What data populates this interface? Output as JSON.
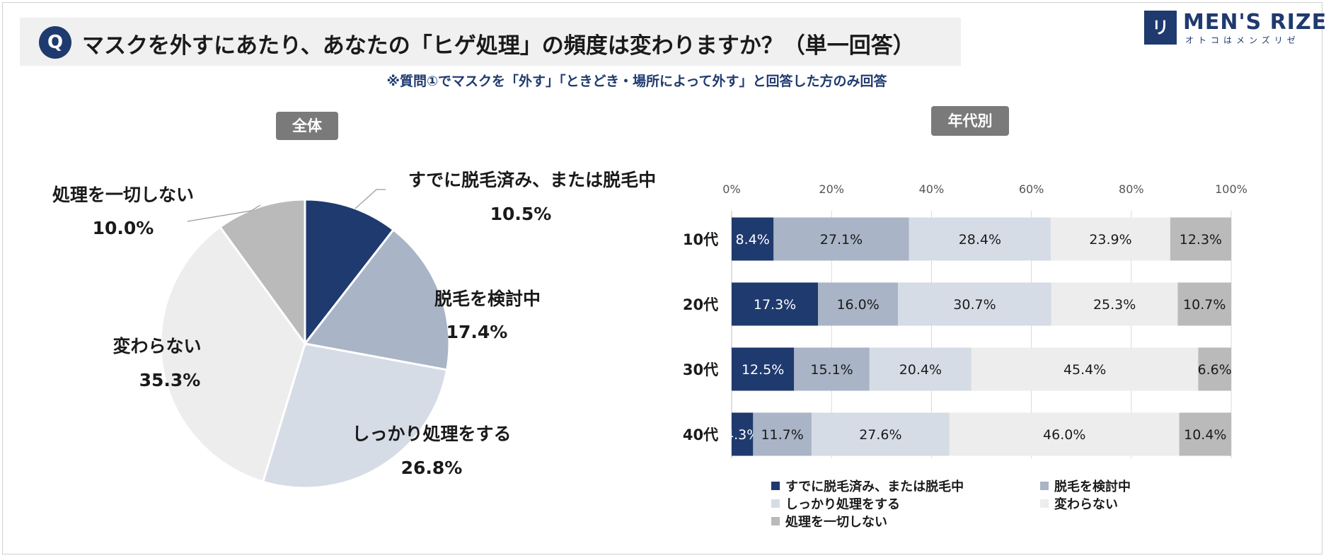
{
  "question": {
    "mark": "Q",
    "text": "マスクを外すにあたり、あなたの「ヒゲ処理」の頻度は変わりますか？（単一回答）",
    "note": "※質問①でマスクを「外す」「ときどき・場所によって外す」と回答した方のみ回答"
  },
  "logo": {
    "mark": "リゼ",
    "name": "MEN'S RIZE",
    "sub": "オトコはメンズリゼ"
  },
  "panels": {
    "overall": "全体",
    "by_age": "年代別"
  },
  "colors": {
    "already": "#1f3a6e",
    "considering": "#a9b4c6",
    "thorough": "#d6dce6",
    "unchanged": "#ededed",
    "none": "#bababa"
  },
  "chart_data": [
    {
      "type": "pie",
      "title": "全体",
      "start_angle_deg": 0,
      "direction": "clockwise",
      "slices": [
        {
          "label": "すでに脱毛済み、または脱毛中",
          "value": 10.5,
          "value_label": "10.5%",
          "color": "#1f3a6e"
        },
        {
          "label": "脱毛を検討中",
          "value": 17.4,
          "value_label": "17.4%",
          "color": "#a9b4c6"
        },
        {
          "label": "しっかり処理をする",
          "value": 26.8,
          "value_label": "26.8%",
          "color": "#d6dce6"
        },
        {
          "label": "変わらない",
          "value": 35.3,
          "value_label": "35.3%",
          "color": "#ededed"
        },
        {
          "label": "処理を一切しない",
          "value": 10.0,
          "value_label": "10.0%",
          "color": "#bababa"
        }
      ]
    },
    {
      "type": "bar",
      "orientation": "horizontal",
      "stacked": true,
      "title": "年代別",
      "categories": [
        "10代",
        "20代",
        "30代",
        "40代"
      ],
      "xlim": [
        0,
        100
      ],
      "xticks": [
        "0%",
        "20%",
        "40%",
        "60%",
        "80%",
        "100%"
      ],
      "grid": true,
      "legend": "bottom",
      "series": [
        {
          "name": "すでに脱毛済み、または脱毛中",
          "color": "#1f3a6e",
          "label_color": "#ffffff",
          "values": [
            8.4,
            17.3,
            12.5,
            4.3
          ],
          "labels": [
            "8.4%",
            "17.3%",
            "12.5%",
            "4.3%"
          ]
        },
        {
          "name": "脱毛を検討中",
          "color": "#a9b4c6",
          "label_color": "#1a1a1a",
          "values": [
            27.1,
            16.0,
            15.1,
            11.7
          ],
          "labels": [
            "27.1%",
            "16.0%",
            "15.1%",
            "11.7%"
          ]
        },
        {
          "name": "しっかり処理をする",
          "color": "#d6dce6",
          "label_color": "#1a1a1a",
          "values": [
            28.4,
            30.7,
            20.4,
            27.6
          ],
          "labels": [
            "28.4%",
            "30.7%",
            "20.4%",
            "27.6%"
          ]
        },
        {
          "name": "変わらない",
          "color": "#ededed",
          "label_color": "#1a1a1a",
          "values": [
            23.9,
            25.3,
            45.4,
            46.0
          ],
          "labels": [
            "23.9%",
            "25.3%",
            "45.4%",
            "46.0%"
          ]
        },
        {
          "name": "処理を一切しない",
          "color": "#bababa",
          "label_color": "#1a1a1a",
          "values": [
            12.3,
            10.7,
            6.6,
            10.4
          ],
          "labels": [
            "12.3%",
            "10.7%",
            "6.6%",
            "10.4%"
          ]
        }
      ]
    }
  ]
}
